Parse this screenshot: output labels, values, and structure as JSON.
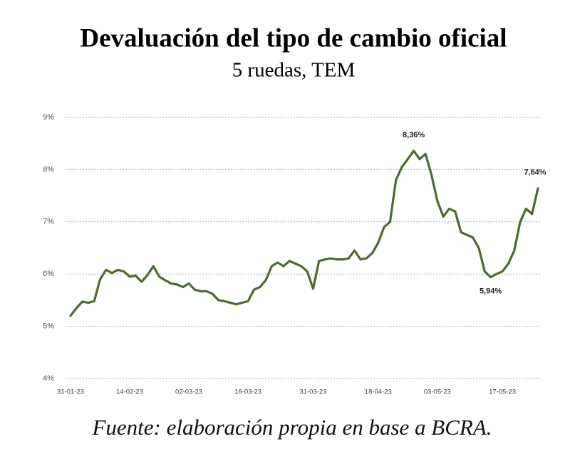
{
  "chart_data": {
    "type": "line",
    "title": "Devaluación del tipo de cambio oficial",
    "subtitle": "5 ruedas, TEM",
    "source": "Fuente: elaboración propia en base a BCRA.",
    "categories": [
      "31-01-23",
      null,
      null,
      null,
      null,
      null,
      null,
      null,
      null,
      null,
      "14-02-23",
      null,
      null,
      null,
      null,
      null,
      null,
      null,
      null,
      null,
      "02-03-23",
      null,
      null,
      null,
      null,
      null,
      null,
      null,
      null,
      null,
      "16-03-23",
      null,
      null,
      null,
      null,
      null,
      null,
      null,
      null,
      null,
      null,
      "31-03-23",
      null,
      null,
      null,
      null,
      null,
      null,
      null,
      null,
      null,
      null,
      "18-04-23",
      null,
      null,
      null,
      null,
      null,
      null,
      null,
      null,
      null,
      "03-05-23",
      null,
      null,
      null,
      null,
      null,
      null,
      null,
      null,
      null,
      null,
      "17-05-23",
      null,
      null,
      null,
      null,
      null,
      null
    ],
    "series": [
      {
        "name": "TEM",
        "color": "#4e6b2c",
        "values": [
          5.2,
          5.35,
          5.47,
          5.45,
          5.48,
          5.9,
          6.08,
          6.02,
          6.08,
          6.05,
          5.95,
          5.97,
          5.85,
          5.98,
          6.15,
          5.95,
          5.88,
          5.82,
          5.8,
          5.75,
          5.82,
          5.7,
          5.67,
          5.67,
          5.62,
          5.5,
          5.48,
          5.45,
          5.42,
          5.45,
          5.48,
          5.7,
          5.75,
          5.88,
          6.15,
          6.22,
          6.15,
          6.25,
          6.2,
          6.15,
          6.05,
          5.72,
          6.25,
          6.28,
          6.3,
          6.28,
          6.28,
          6.3,
          6.45,
          6.28,
          6.3,
          6.4,
          6.6,
          6.9,
          7.0,
          7.8,
          8.05,
          8.2,
          8.36,
          8.2,
          8.3,
          7.9,
          7.4,
          7.1,
          7.25,
          7.2,
          6.8,
          6.75,
          6.7,
          6.5,
          6.05,
          5.94,
          6.0,
          6.05,
          6.2,
          6.45,
          7.0,
          7.25,
          7.15,
          7.64
        ],
        "value_labels": [
          null,
          null,
          null,
          null,
          null,
          null,
          null,
          null,
          null,
          null,
          null,
          null,
          null,
          null,
          null,
          null,
          null,
          null,
          null,
          null,
          null,
          null,
          null,
          null,
          null,
          null,
          null,
          null,
          null,
          null,
          null,
          null,
          null,
          null,
          null,
          null,
          null,
          null,
          null,
          null,
          null,
          null,
          null,
          null,
          null,
          null,
          null,
          null,
          null,
          null,
          null,
          null,
          null,
          null,
          null,
          null,
          null,
          null,
          "8,36%",
          null,
          null,
          null,
          null,
          null,
          null,
          null,
          null,
          null,
          null,
          null,
          null,
          "5,94%",
          null,
          null,
          null,
          null,
          null,
          null,
          null,
          "7,64%"
        ]
      }
    ],
    "ylim": [
      4,
      9
    ],
    "yticks": [
      {
        "value": 4,
        "label": "4%"
      },
      {
        "value": 5,
        "label": "5%"
      },
      {
        "value": 6,
        "label": "6%"
      },
      {
        "value": 7,
        "label": "7%"
      },
      {
        "value": 8,
        "label": "8%"
      },
      {
        "value": 9,
        "label": "9%"
      }
    ],
    "grid": true
  }
}
